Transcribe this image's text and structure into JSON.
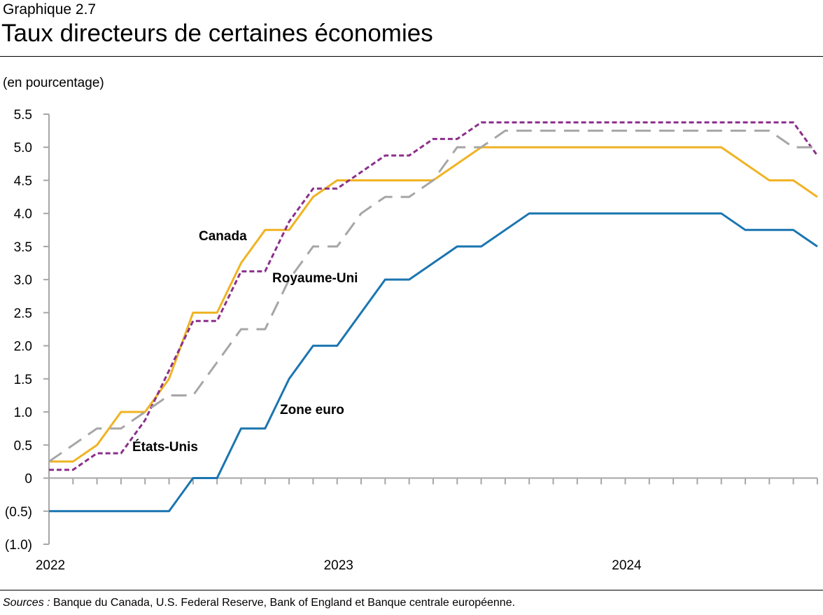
{
  "header": {
    "subtitle": "Graphique 2.7",
    "title": "Taux directeurs de certaines économies"
  },
  "unit_label": "(en pourcentage)",
  "footer": {
    "sources_label": "Sources :",
    "sources_text": " Banque du Canada, U.S.  Federal Reserve, Bank of England et Banque centrale européenne."
  },
  "chart_data": {
    "type": "line",
    "title": "Taux directeurs de certaines économies",
    "ylabel": "(en pourcentage)",
    "ylim": [
      -1.0,
      5.5
    ],
    "yticks": [
      "5.5",
      "5.0",
      "4.5",
      "4.0",
      "3.5",
      "3.0",
      "2.5",
      "2.0",
      "1.5",
      "1.0",
      "0.5",
      "0",
      "(0.5)",
      "(1.0)"
    ],
    "ytick_values": [
      5.5,
      5.0,
      4.5,
      4.0,
      3.5,
      3.0,
      2.5,
      2.0,
      1.5,
      1.0,
      0.5,
      0,
      -0.5,
      -1.0
    ],
    "x_start": "2022-01",
    "x_frequency": "monthly",
    "x_labels": [
      {
        "label": "2022",
        "month_index": 0
      },
      {
        "label": "2023",
        "month_index": 12
      },
      {
        "label": "2024",
        "month_index": 24
      }
    ],
    "grid": false,
    "series": [
      {
        "name": "Canada",
        "color": "#F0B323",
        "style": "solid",
        "values": [
          0.25,
          0.25,
          0.5,
          1.0,
          1.0,
          1.5,
          2.5,
          2.5,
          3.25,
          3.75,
          3.75,
          4.25,
          4.5,
          4.5,
          4.5,
          4.5,
          4.5,
          4.75,
          5.0,
          5.0,
          5.0,
          5.0,
          5.0,
          5.0,
          5.0,
          5.0,
          5.0,
          5.0,
          5.0,
          4.75,
          4.5,
          4.5,
          4.25
        ]
      },
      {
        "name": "États-Unis",
        "color": "#8B2F8B",
        "style": "dotted",
        "values": [
          0.125,
          0.125,
          0.375,
          0.375,
          0.875,
          1.625,
          2.375,
          2.375,
          3.125,
          3.125,
          3.875,
          4.375,
          4.375,
          4.625,
          4.875,
          4.875,
          5.125,
          5.125,
          5.375,
          5.375,
          5.375,
          5.375,
          5.375,
          5.375,
          5.375,
          5.375,
          5.375,
          5.375,
          5.375,
          5.375,
          5.375,
          5.375,
          4.875
        ]
      },
      {
        "name": "Royaume-Uni",
        "color": "#A6A6A6",
        "style": "dashed",
        "values": [
          0.25,
          0.5,
          0.75,
          0.75,
          1.0,
          1.25,
          1.25,
          1.75,
          2.25,
          2.25,
          3.0,
          3.5,
          3.5,
          4.0,
          4.25,
          4.25,
          4.5,
          5.0,
          5.0,
          5.25,
          5.25,
          5.25,
          5.25,
          5.25,
          5.25,
          5.25,
          5.25,
          5.25,
          5.25,
          5.25,
          5.25,
          5.0,
          5.0
        ]
      },
      {
        "name": "Zone euro",
        "color": "#1A75B0",
        "style": "solid",
        "values": [
          -0.5,
          -0.5,
          -0.5,
          -0.5,
          -0.5,
          -0.5,
          0,
          0,
          0.75,
          0.75,
          1.5,
          2.0,
          2.0,
          2.5,
          3.0,
          3.0,
          3.25,
          3.5,
          3.5,
          3.75,
          4.0,
          4.0,
          4.0,
          4.0,
          4.0,
          4.0,
          4.0,
          4.0,
          4.0,
          3.75,
          3.75,
          3.75,
          3.5
        ]
      }
    ],
    "annotations": [
      "Canada",
      "Royaume-Uni",
      "Zone euro",
      "États-Unis"
    ]
  }
}
